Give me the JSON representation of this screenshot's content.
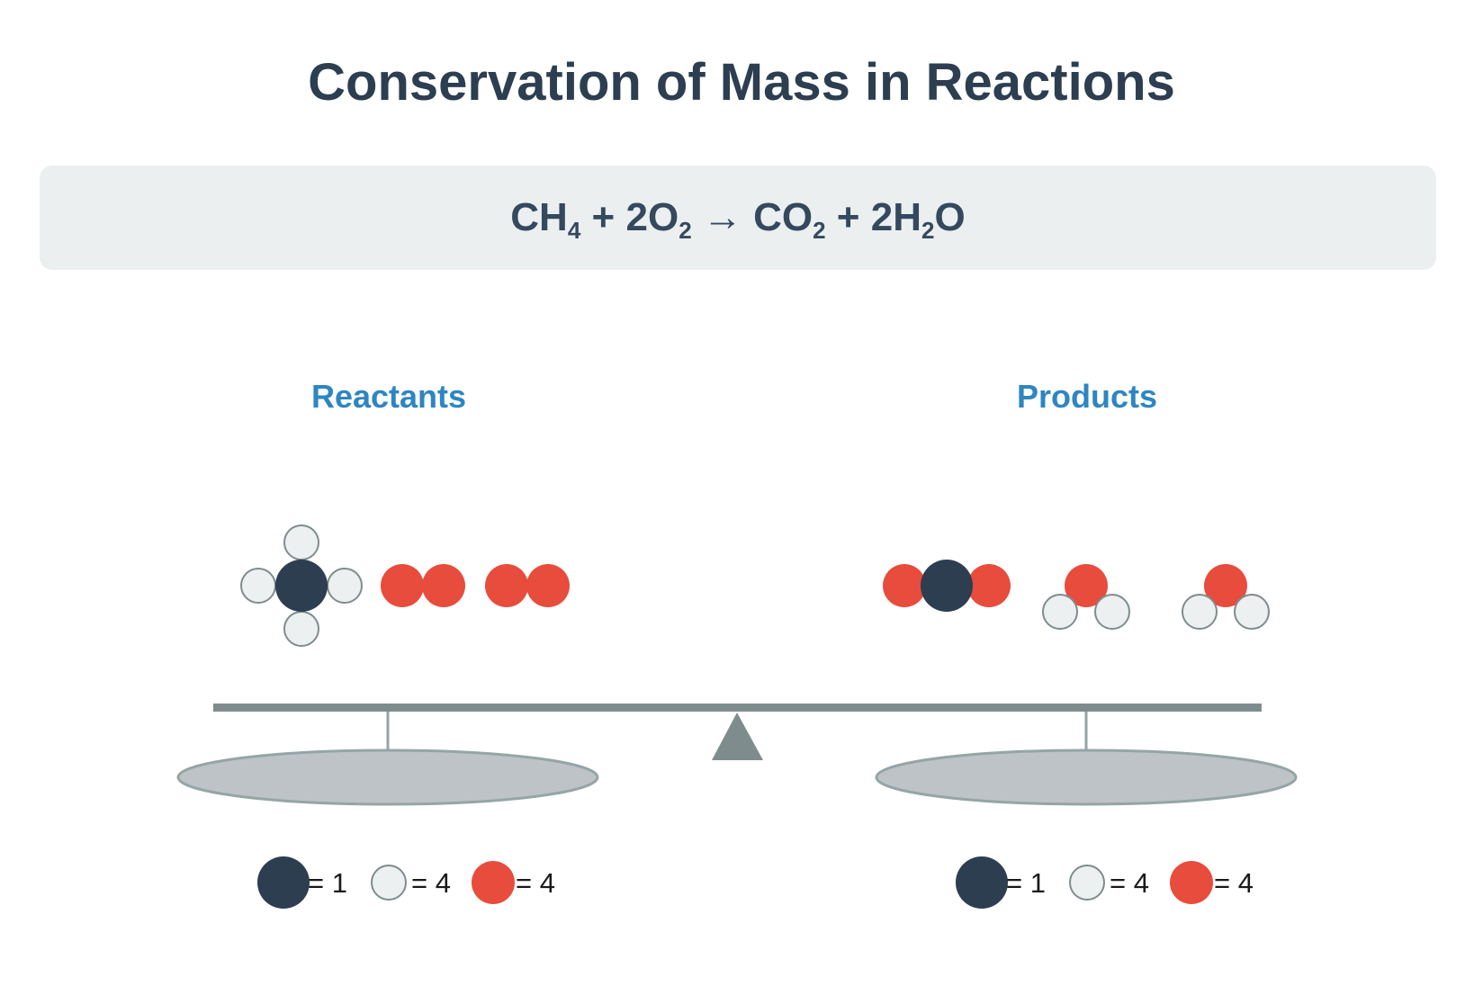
{
  "title": "Conservation of Mass in Reactions",
  "equation": {
    "reactant_1": {
      "text": "CH",
      "sub": "4"
    },
    "plus_1": " + ",
    "reactant_2": {
      "coef": "2",
      "text": "O",
      "sub": "2"
    },
    "arrow": " → ",
    "product_1": {
      "text": "CO",
      "sub": "2"
    },
    "plus_2": " + ",
    "product_2": {
      "coef": "2",
      "text": "H",
      "sub": "2",
      "tail": "O"
    }
  },
  "labels": {
    "reactants": "Reactants",
    "products": "Products"
  },
  "colors": {
    "carbon": "#2c3e50",
    "hydrogen": "#ecf0f1",
    "oxygen": "#e74c3c",
    "scale": "#7f8c8d",
    "pan": "#bdc3c7",
    "label": "#2e86c1"
  },
  "atom_counts": {
    "reactants": [
      {
        "atom": "carbon",
        "text": "= 1"
      },
      {
        "atom": "hydrogen",
        "text": "= 4"
      },
      {
        "atom": "oxygen",
        "text": "= 4"
      }
    ],
    "products": [
      {
        "atom": "carbon",
        "text": "= 1"
      },
      {
        "atom": "hydrogen",
        "text": "= 4"
      },
      {
        "atom": "oxygen",
        "text": "= 4"
      }
    ]
  }
}
